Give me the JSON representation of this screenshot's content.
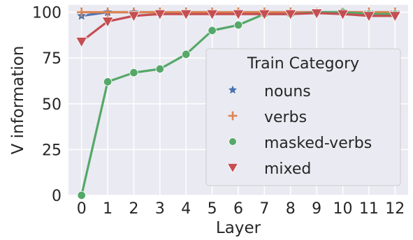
{
  "chart_data": {
    "type": "line",
    "xlabel": "Layer",
    "ylabel": "V information",
    "x": [
      0,
      1,
      2,
      3,
      4,
      5,
      6,
      7,
      8,
      9,
      10,
      11,
      12
    ],
    "xlim": [
      -0.5,
      12.5
    ],
    "ylim": [
      0,
      104
    ],
    "yticks": [
      0,
      25,
      50,
      75,
      100
    ],
    "grid": true,
    "legend": {
      "title": "Train Category",
      "placement": "center-right"
    },
    "series": [
      {
        "name": "nouns",
        "color": "#4C72B0",
        "marker": "star",
        "values": [
          98,
          100,
          100,
          100,
          100,
          100,
          100,
          100,
          100,
          100,
          100,
          100,
          100
        ]
      },
      {
        "name": "verbs",
        "color": "#DD8452",
        "marker": "plus",
        "values": [
          100,
          100,
          100,
          100,
          100,
          100,
          100,
          100,
          100,
          100,
          100,
          100,
          100
        ]
      },
      {
        "name": "masked-verbs",
        "color": "#55A868",
        "marker": "circle",
        "values": [
          0,
          62,
          67,
          69,
          77,
          90,
          93,
          99,
          99,
          100,
          100,
          99,
          99
        ]
      },
      {
        "name": "mixed",
        "color": "#C44E52",
        "marker": "triangle-down",
        "values": [
          84,
          95,
          98,
          99,
          99,
          99,
          99,
          99,
          99,
          99.5,
          99,
          98,
          98
        ]
      }
    ]
  }
}
